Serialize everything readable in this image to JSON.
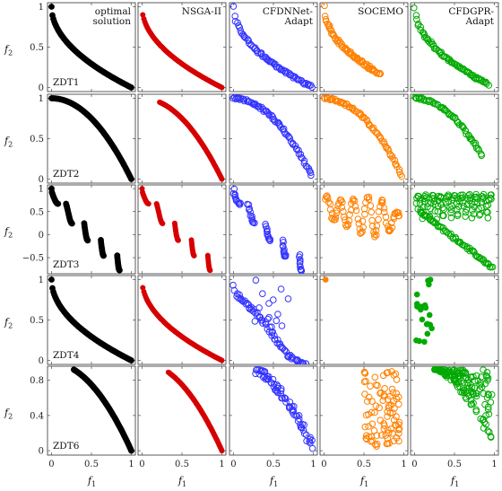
{
  "chart_data": {
    "type": "scatter",
    "grid": false,
    "columns": [
      {
        "title": [
          "optimal",
          "solution"
        ],
        "color": "#000000",
        "marker": "filled"
      },
      {
        "title": [
          "NSGA-II"
        ],
        "color": "#d60000",
        "marker": "filled"
      },
      {
        "title": [
          "CFDNNet-",
          "Adapt"
        ],
        "color": "#3333ff",
        "marker": "open"
      },
      {
        "title": [
          "SOCEMO"
        ],
        "color": "#ff8000",
        "marker": "open"
      },
      {
        "title": [
          "CFDGPR-",
          "Adapt"
        ],
        "color": "#00aa00",
        "marker": "open"
      }
    ],
    "rows": [
      {
        "name": "ZDT1",
        "ylabel": "f2",
        "ylim": [
          -0.05,
          1.05
        ],
        "yticks": [
          "0",
          "0.5",
          "1"
        ]
      },
      {
        "name": "ZDT2",
        "ylabel": "f2",
        "ylim": [
          -0.05,
          1.05
        ],
        "yticks": [
          "0",
          "0.5",
          "1"
        ]
      },
      {
        "name": "ZDT3",
        "ylabel": "f2",
        "ylim": [
          -0.85,
          1.08
        ],
        "yticks": [
          "−0.5",
          "0",
          "0.5",
          "1"
        ]
      },
      {
        "name": "ZDT4",
        "ylabel": "f2",
        "ylim": [
          -0.05,
          1.05
        ],
        "yticks": [
          "0",
          "0.5",
          "1"
        ]
      },
      {
        "name": "ZDT6",
        "ylabel": "f2",
        "ylim": [
          -0.05,
          0.96
        ],
        "yticks": [
          "0",
          "0.4",
          "0.8"
        ]
      }
    ],
    "xlabel": "f1",
    "xlim": [
      -0.05,
      1.05
    ],
    "xticks": [
      "0",
      "0.5",
      "1"
    ]
  }
}
